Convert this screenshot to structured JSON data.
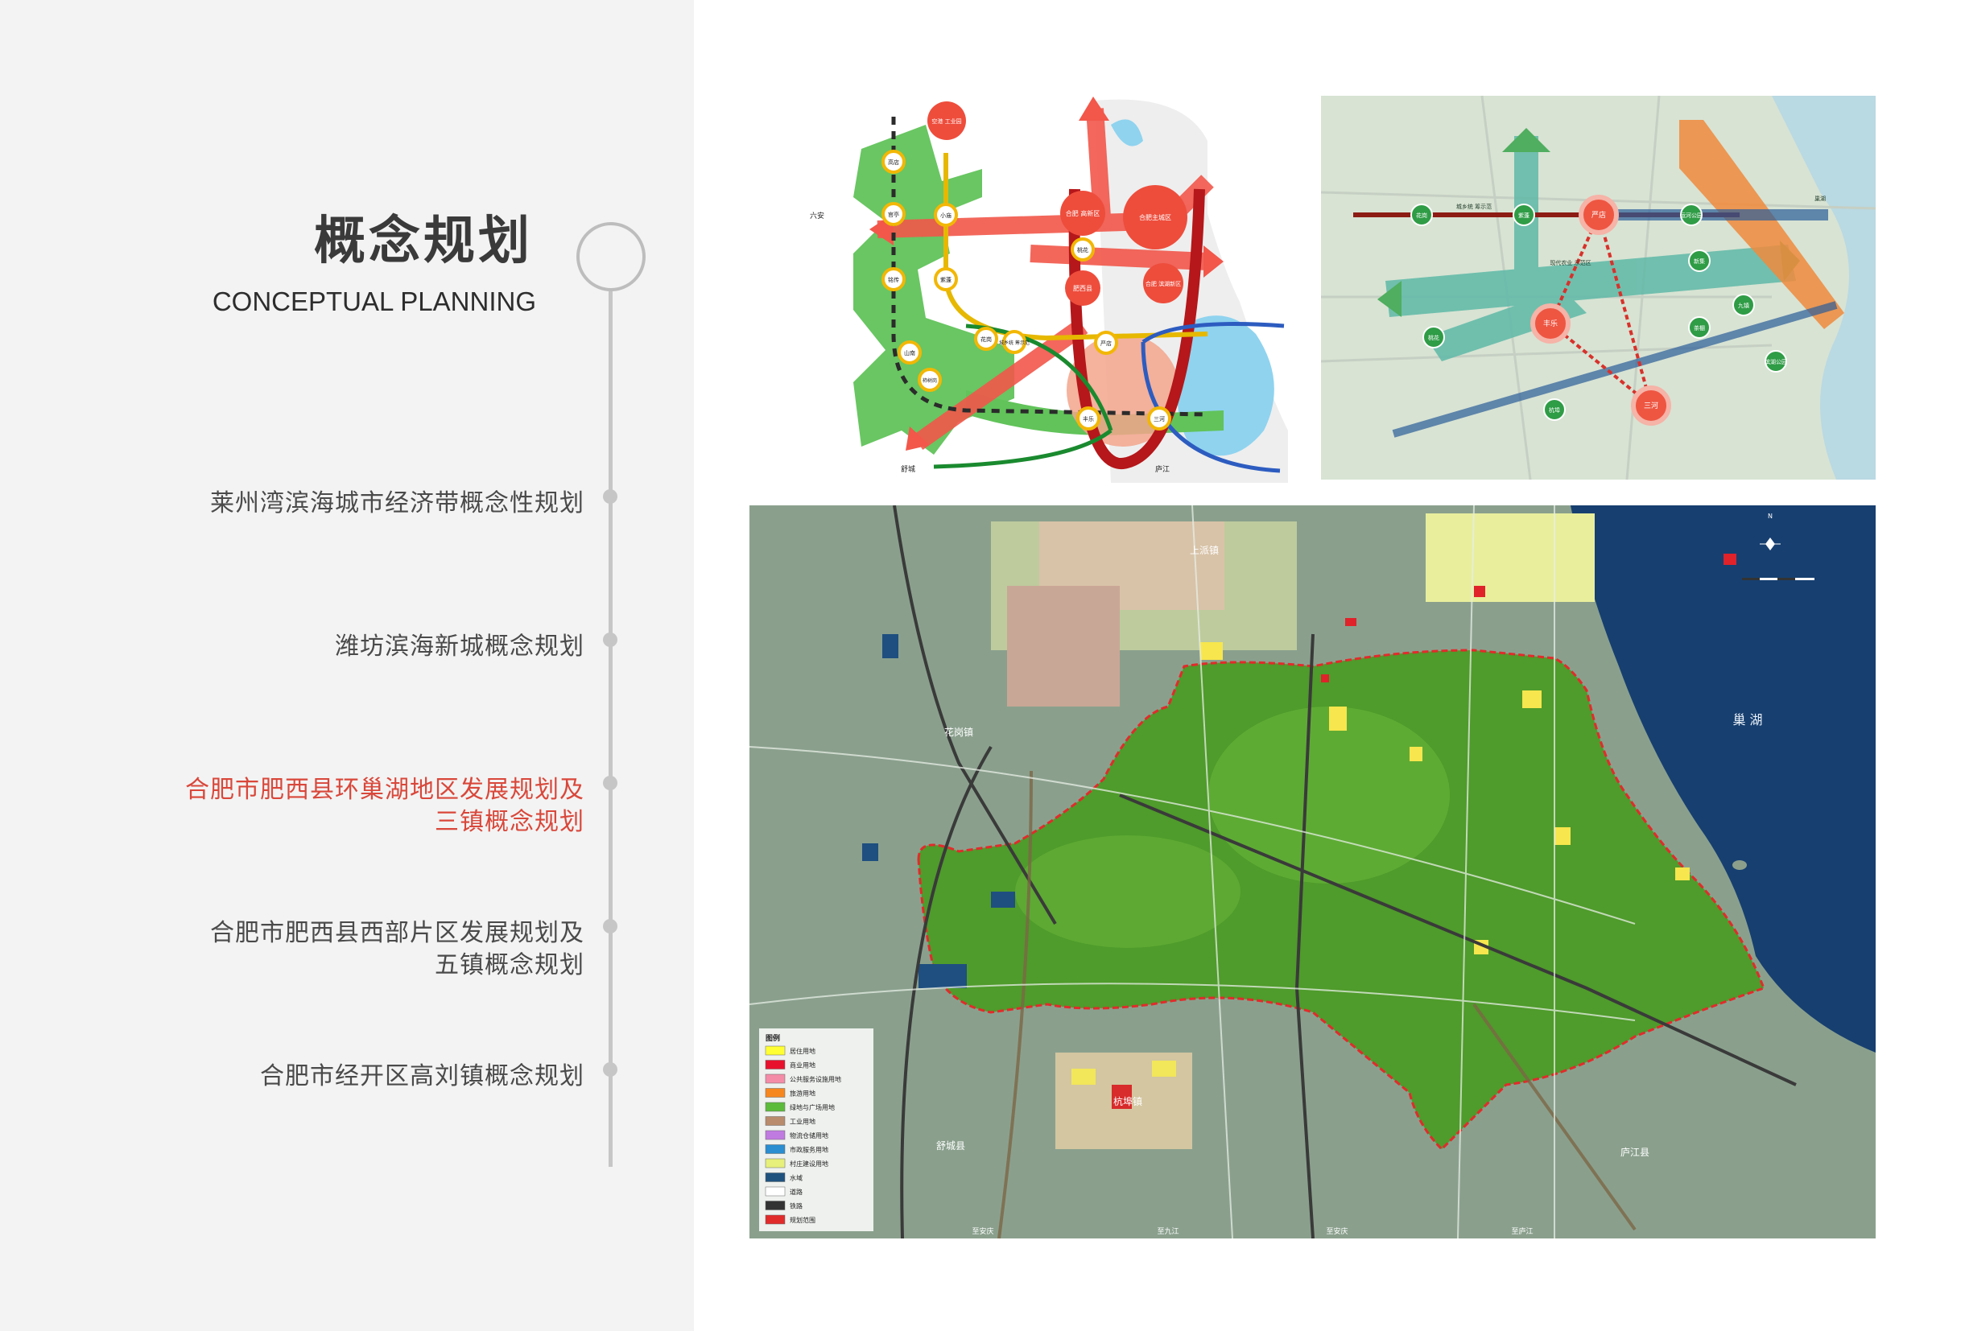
{
  "header": {
    "title_cn": "概念规划",
    "title_en": "CONCEPTUAL PLANNING"
  },
  "timeline": {
    "items": [
      {
        "lines": [
          "莱州湾滨海城市经济带概念性规划"
        ],
        "active": false
      },
      {
        "lines": [
          "潍坊滨海新城概念规划"
        ],
        "active": false
      },
      {
        "lines": [
          "合肥市肥西县环巢湖地区发展规划及",
          "三镇概念规划"
        ],
        "active": true
      },
      {
        "lines": [
          "合肥市肥西县西部片区发展规划及",
          "五镇概念规划"
        ],
        "active": false
      },
      {
        "lines": [
          "合肥市经开区高刘镇概念规划"
        ],
        "active": false
      }
    ]
  },
  "diagram_left": {
    "labels": {
      "liuan": "六安",
      "shucheng": "舒城",
      "lujiang": "庐江",
      "kong_gang": "空港\n工业园",
      "hefei_gaoxin": "合肥\n高新区",
      "hefei_main": "合肥主城区",
      "taohua": "桃花",
      "feixi": "肥西县",
      "hefei_binhu": "合肥\n滨湖新区",
      "gaodian": "高店",
      "guanting": "官亭",
      "xiaomiao": "小庙",
      "mingchuan": "铭传",
      "zitong": "紫蓬",
      "shannan": "山南",
      "huagang": "花岗",
      "chengxiang": "城乡统\n筹示范",
      "yandian": "严店",
      "fengle": "丰乐",
      "sanhe": "三河",
      "zhuzhuan": "柿树岗"
    }
  },
  "diagram_right": {
    "labels": {
      "yandian": "严店",
      "fengle": "丰乐",
      "sanhe": "三河",
      "huagang": "花岗",
      "zitong": "紫蓬",
      "chengxiang": "城乡统\n筹示范",
      "xiandai": "现代农业\n示范区",
      "taohua": "桃花",
      "binhu": "运河公园",
      "yanhu": "滨湖公园",
      "xinji": "新集",
      "chaya": "茶棚",
      "jiuzhen": "九镇",
      "sanxing": "三河",
      "hangbu": "杭埠",
      "yuehu": "巢湖"
    }
  },
  "land_map": {
    "places": {
      "shangpai": "上派镇",
      "huagang": "花岗镇",
      "chaohu": "巢 湖",
      "hangbu": "杭埠镇",
      "shucheng": "舒城县",
      "lujiang": "庐江县",
      "zhi_anqing_1": "至安庆",
      "zhi_jiujiang": "至九江",
      "zhi_anqing_2": "至安庆",
      "zhi_lujiang": "至庐江",
      "north": "N"
    },
    "legend": {
      "title": "图例",
      "items": [
        {
          "label": "居住用地",
          "color": "#ffff33"
        },
        {
          "label": "商业用地",
          "color": "#e8112d"
        },
        {
          "label": "公共服务设施用地",
          "color": "#f48ca8"
        },
        {
          "label": "旅游用地",
          "color": "#f6871f"
        },
        {
          "label": "绿地与广场用地",
          "color": "#5dbb3b"
        },
        {
          "label": "工业用地",
          "color": "#b88c6c"
        },
        {
          "label": "物流仓储用地",
          "color": "#c07be0"
        },
        {
          "label": "市政服务用地",
          "color": "#2a8ed0"
        },
        {
          "label": "村庄建设用地",
          "color": "#e6f07a"
        },
        {
          "label": "水域",
          "color": "#20527e"
        },
        {
          "label": "道路",
          "color": "#ffffff"
        },
        {
          "label": "铁路",
          "color": "#333333"
        },
        {
          "label": "规划范围",
          "color": "#e12b2b"
        }
      ]
    }
  }
}
